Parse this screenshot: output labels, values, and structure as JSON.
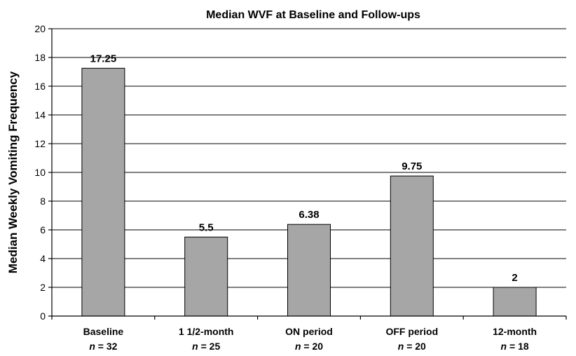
{
  "chart_data": {
    "type": "bar",
    "title": "Median WVF at Baseline and Follow-ups",
    "ylabel": "Median Weekly Vomiting Frequency",
    "xlabel": "",
    "categories": [
      "Baseline",
      "1 1/2-month",
      "ON period",
      "OFF period",
      "12-month"
    ],
    "sample_sizes": [
      "32",
      "25",
      "20",
      "20",
      "18"
    ],
    "sample_prefix": "n",
    "sample_sep": " = ",
    "values": [
      17.25,
      5.5,
      6.38,
      9.75,
      2
    ],
    "data_labels": [
      "17.25",
      "5.5",
      "6.38",
      "9.75",
      "2"
    ],
    "ylim": [
      0,
      20
    ],
    "yticks": [
      0,
      2,
      4,
      6,
      8,
      10,
      12,
      14,
      16,
      18,
      20
    ],
    "grid": true,
    "legend": "none",
    "bar_color": "#a6a6a6"
  }
}
